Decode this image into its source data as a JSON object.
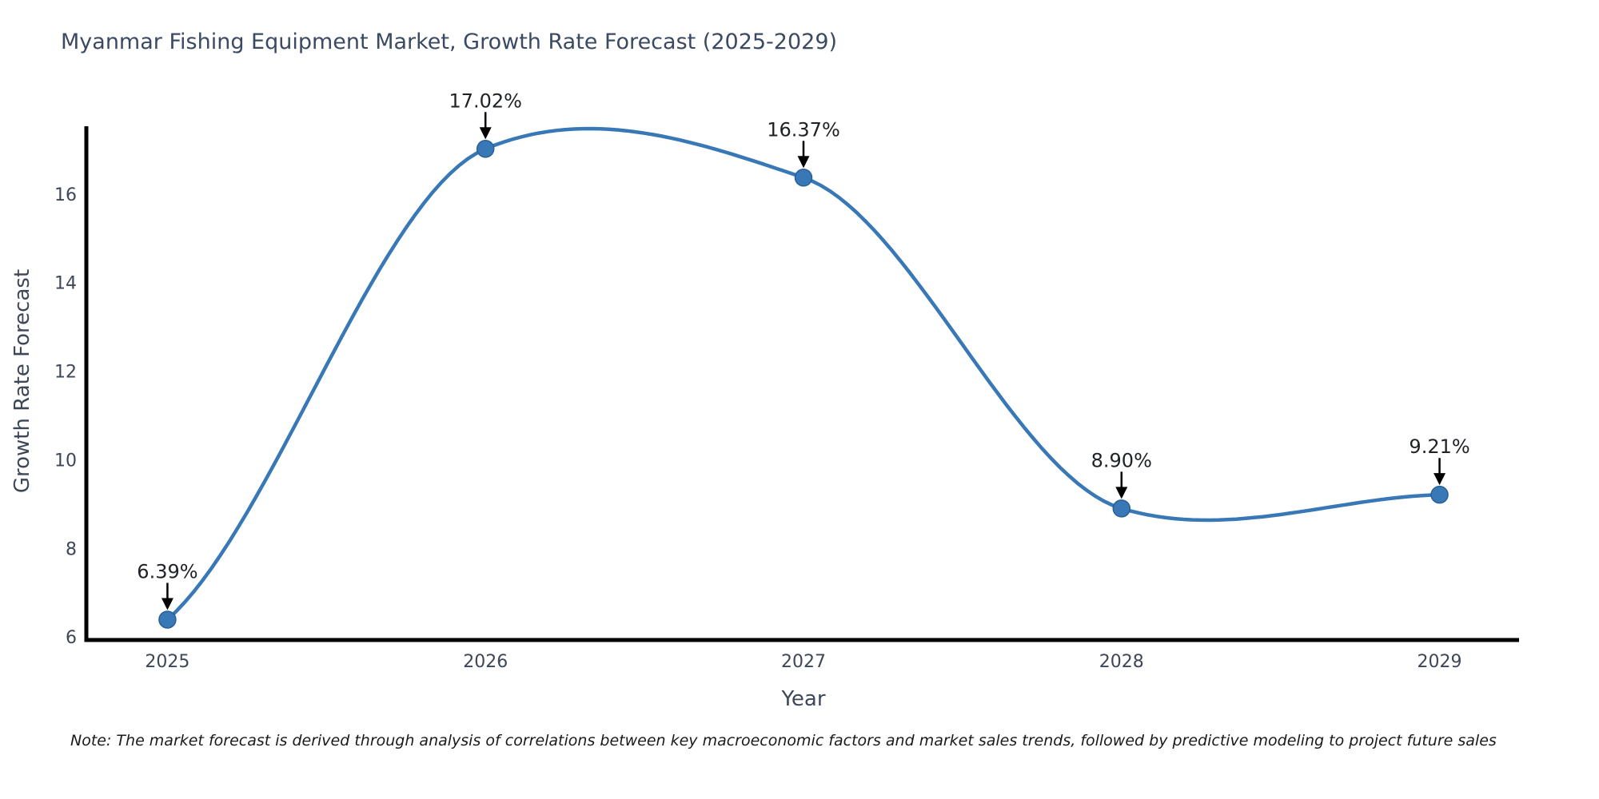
{
  "title": {
    "text": "Myanmar Fishing Equipment Market, Growth Rate Forecast (2025-2029)"
  },
  "note": {
    "text": "Note: The market forecast is derived through analysis of correlations between key macroeconomic factors and market sales trends, followed by predictive modeling to project future sales"
  },
  "chart_data": {
    "type": "line",
    "title": "Myanmar Fishing Equipment Market, Growth Rate Forecast (2025-2029)",
    "xlabel": "Year",
    "ylabel": "Growth Rate Forecast",
    "x": [
      2025,
      2026,
      2027,
      2028,
      2029
    ],
    "y": [
      6.39,
      17.02,
      16.37,
      8.9,
      9.21
    ],
    "point_labels": [
      "6.39%",
      "17.02%",
      "16.37%",
      "8.90%",
      "9.21%"
    ],
    "xticks": [
      "2025",
      "2026",
      "2027",
      "2028",
      "2029"
    ],
    "yticks": [
      6,
      8,
      10,
      12,
      14,
      16
    ],
    "xlim": [
      2024.745,
      2029.25
    ],
    "ylim": [
      5.93,
      17.53
    ],
    "curve": "smooth-spline",
    "grid": false,
    "legend": null,
    "line_color": "#3878b6",
    "marker_color": "#3878b6",
    "marker_edge_color": "#2a5f94",
    "spine_color": "#000000",
    "annotation_arrow_color": "#000000",
    "text_color": "#3d4757"
  }
}
